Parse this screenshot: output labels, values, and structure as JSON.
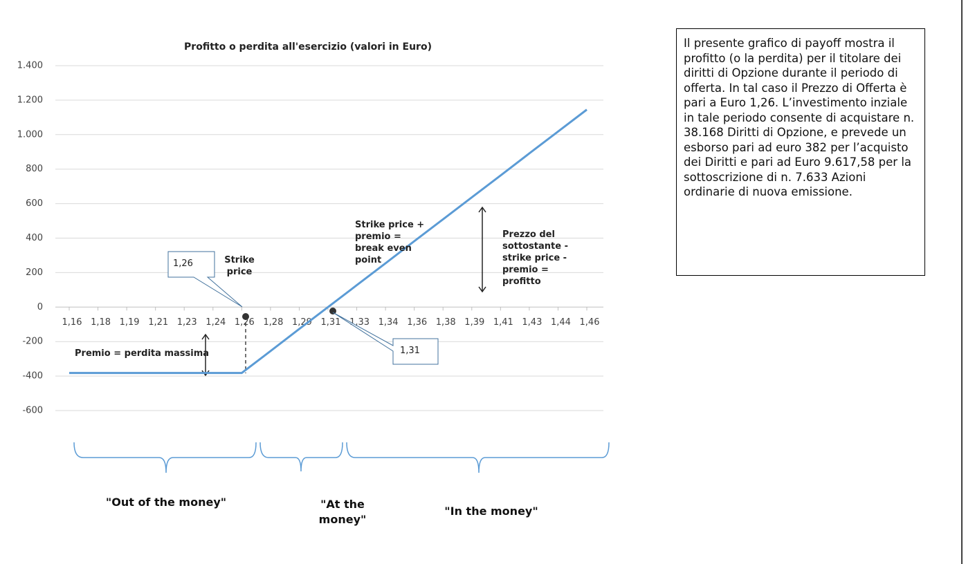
{
  "chart_data": {
    "type": "line",
    "title": "Profitto o perdita all'esercizio (valori in Euro)",
    "categories": [
      "1,16",
      "1,18",
      "1,19",
      "1,21",
      "1,23",
      "1,24",
      "1,26",
      "1,28",
      "1,29",
      "1,31",
      "1,33",
      "1,34",
      "1,36",
      "1,38",
      "1,39",
      "1,41",
      "1,43",
      "1,44",
      "1,46"
    ],
    "series": [
      {
        "color": "#5b9bd5",
        "values": [
          -382,
          -382,
          -382,
          -382,
          -382,
          -382,
          -382,
          -255,
          -127,
          0,
          127,
          254,
          382,
          509,
          636,
          763,
          891,
          1018,
          1145
        ]
      }
    ],
    "ylim": [
      -600,
      1400
    ],
    "yticks": [
      {
        "value": 1400,
        "label": "1.400"
      },
      {
        "value": 1200,
        "label": "1.200"
      },
      {
        "value": 1000,
        "label": "1.000"
      },
      800,
      600,
      400,
      200,
      0,
      -200,
      -400,
      -600
    ],
    "grid": true,
    "annotations": {
      "strike": "Strike price",
      "break_even": "Strike price + premio = break even point",
      "profit": "Prezzo del sottostante - strike price - premio = profitto",
      "premium": "Premio = perdita massima",
      "callout_1": "1,26",
      "callout_2": "1,31",
      "zones": [
        "\"Out of the money\"",
        "\"At the money\"",
        "\"In the money\""
      ]
    }
  },
  "description": "Il presente grafico di payoff mostra il profitto (o la perdita) per il titolare dei diritti di Opzione durante il periodo di offerta. In tal caso il Prezzo di Offerta è pari a Euro 1,26. L’investimento inziale in tale periodo consente di acquistare n. 38.168 Diritti di Opzione, e prevede un esborso pari ad euro 382 per l’acquisto dei Diritti e pari ad Euro 9.617,58 per la sottoscrizione di n. 7.633 Azioni ordinarie di nuova emissione."
}
